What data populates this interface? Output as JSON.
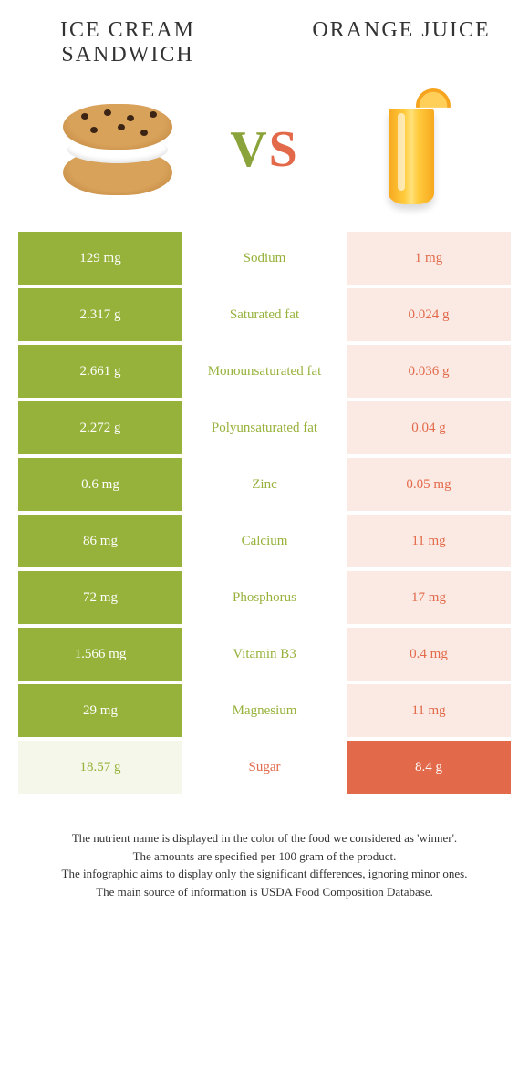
{
  "titles": {
    "left": "ICE CREAM SANDWICH",
    "right": "ORANGE JUICE"
  },
  "vs": {
    "v": "V",
    "s": "S"
  },
  "colors": {
    "green": "#96b23b",
    "orange": "#e26a4a",
    "green_faded": "#f4f7e9",
    "orange_faded": "#fbe9e3",
    "background": "#ffffff"
  },
  "rows": [
    {
      "left": "129 mg",
      "name": "Sodium",
      "right": "1 mg",
      "winner": "left"
    },
    {
      "left": "2.317 g",
      "name": "Saturated fat",
      "right": "0.024 g",
      "winner": "left"
    },
    {
      "left": "2.661 g",
      "name": "Monounsaturated fat",
      "right": "0.036 g",
      "winner": "left"
    },
    {
      "left": "2.272 g",
      "name": "Polyunsaturated fat",
      "right": "0.04 g",
      "winner": "left"
    },
    {
      "left": "0.6 mg",
      "name": "Zinc",
      "right": "0.05 mg",
      "winner": "left"
    },
    {
      "left": "86 mg",
      "name": "Calcium",
      "right": "11 mg",
      "winner": "left"
    },
    {
      "left": "72 mg",
      "name": "Phosphorus",
      "right": "17 mg",
      "winner": "left"
    },
    {
      "left": "1.566 mg",
      "name": "Vitamin B3",
      "right": "0.4 mg",
      "winner": "left"
    },
    {
      "left": "29 mg",
      "name": "Magnesium",
      "right": "11 mg",
      "winner": "left"
    },
    {
      "left": "18.57 g",
      "name": "Sugar",
      "right": "8.4 g",
      "winner": "right"
    }
  ],
  "footer": [
    "The nutrient name is displayed in the color of the food we considered as 'winner'.",
    "The amounts are specified per 100 gram of the product.",
    "The infographic aims to display only the significant differences, ignoring minor ones.",
    "The main source of information is USDA Food Composition Database."
  ]
}
